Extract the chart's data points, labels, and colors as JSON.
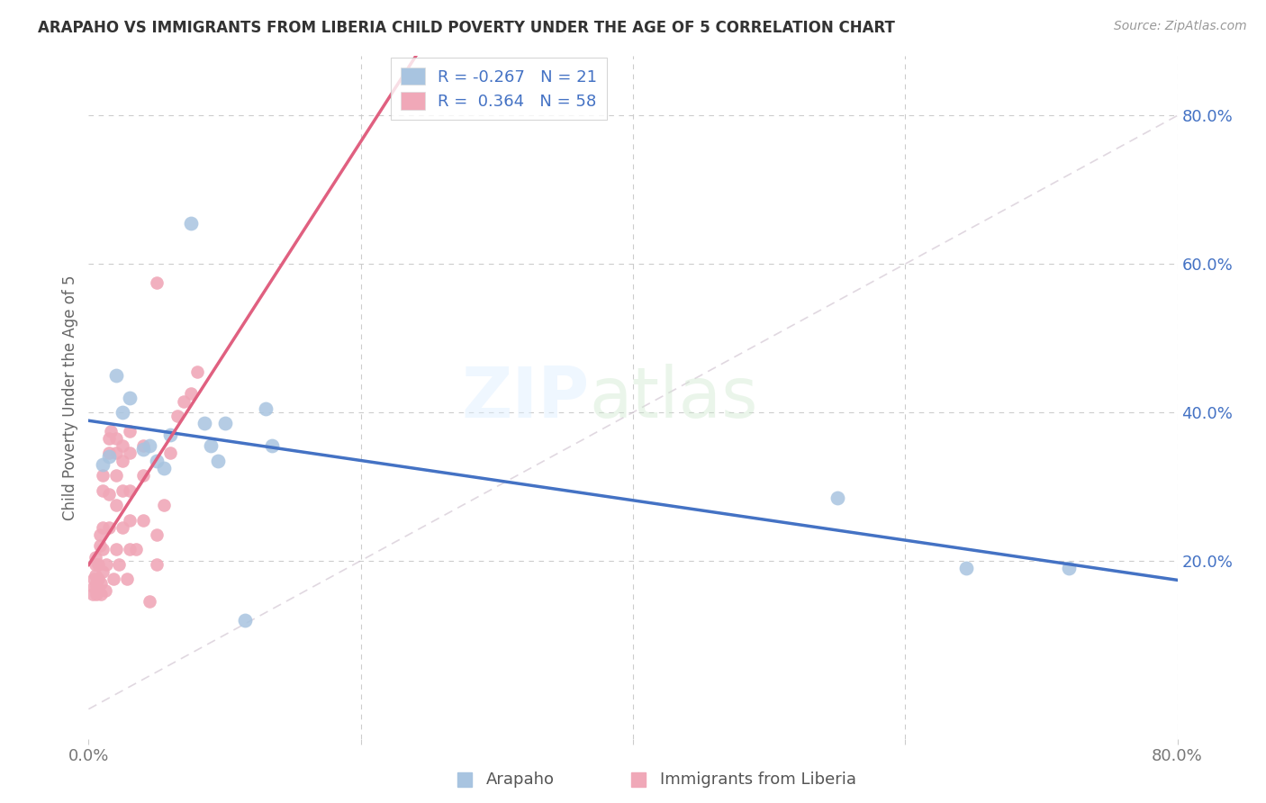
{
  "title": "ARAPAHO VS IMMIGRANTS FROM LIBERIA CHILD POVERTY UNDER THE AGE OF 5 CORRELATION CHART",
  "source": "Source: ZipAtlas.com",
  "ylabel": "Child Poverty Under the Age of 5",
  "xlim": [
    0.0,
    0.8
  ],
  "ylim": [
    -0.04,
    0.88
  ],
  "arapaho_color": "#a8c4e0",
  "liberia_color": "#f0a8b8",
  "arapaho_line_color": "#4472c4",
  "liberia_line_color": "#e06080",
  "legend_R_arapaho": "R = -0.267",
  "legend_N_arapaho": "N = 21",
  "legend_R_liberia": "R =  0.364",
  "legend_N_liberia": "N = 58",
  "arapaho_points": [
    [
      0.01,
      0.33
    ],
    [
      0.015,
      0.34
    ],
    [
      0.02,
      0.45
    ],
    [
      0.025,
      0.4
    ],
    [
      0.03,
      0.42
    ],
    [
      0.04,
      0.35
    ],
    [
      0.045,
      0.355
    ],
    [
      0.05,
      0.335
    ],
    [
      0.055,
      0.325
    ],
    [
      0.06,
      0.37
    ],
    [
      0.075,
      0.655
    ],
    [
      0.085,
      0.385
    ],
    [
      0.09,
      0.355
    ],
    [
      0.095,
      0.335
    ],
    [
      0.1,
      0.385
    ],
    [
      0.115,
      0.12
    ],
    [
      0.13,
      0.405
    ],
    [
      0.135,
      0.355
    ],
    [
      0.55,
      0.285
    ],
    [
      0.645,
      0.19
    ],
    [
      0.72,
      0.19
    ]
  ],
  "liberia_points": [
    [
      0.003,
      0.155
    ],
    [
      0.004,
      0.165
    ],
    [
      0.004,
      0.175
    ],
    [
      0.005,
      0.18
    ],
    [
      0.005,
      0.195
    ],
    [
      0.005,
      0.205
    ],
    [
      0.006,
      0.155
    ],
    [
      0.006,
      0.165
    ],
    [
      0.006,
      0.17
    ],
    [
      0.007,
      0.175
    ],
    [
      0.007,
      0.195
    ],
    [
      0.008,
      0.22
    ],
    [
      0.008,
      0.235
    ],
    [
      0.009,
      0.155
    ],
    [
      0.009,
      0.17
    ],
    [
      0.01,
      0.185
    ],
    [
      0.01,
      0.215
    ],
    [
      0.01,
      0.245
    ],
    [
      0.01,
      0.295
    ],
    [
      0.01,
      0.315
    ],
    [
      0.012,
      0.16
    ],
    [
      0.013,
      0.195
    ],
    [
      0.015,
      0.245
    ],
    [
      0.015,
      0.29
    ],
    [
      0.015,
      0.345
    ],
    [
      0.015,
      0.365
    ],
    [
      0.016,
      0.375
    ],
    [
      0.018,
      0.175
    ],
    [
      0.02,
      0.215
    ],
    [
      0.02,
      0.275
    ],
    [
      0.02,
      0.315
    ],
    [
      0.02,
      0.345
    ],
    [
      0.02,
      0.365
    ],
    [
      0.022,
      0.195
    ],
    [
      0.025,
      0.245
    ],
    [
      0.025,
      0.295
    ],
    [
      0.025,
      0.335
    ],
    [
      0.025,
      0.355
    ],
    [
      0.028,
      0.175
    ],
    [
      0.03,
      0.215
    ],
    [
      0.03,
      0.255
    ],
    [
      0.03,
      0.295
    ],
    [
      0.03,
      0.345
    ],
    [
      0.03,
      0.375
    ],
    [
      0.035,
      0.215
    ],
    [
      0.04,
      0.255
    ],
    [
      0.04,
      0.315
    ],
    [
      0.04,
      0.355
    ],
    [
      0.045,
      0.145
    ],
    [
      0.05,
      0.195
    ],
    [
      0.05,
      0.235
    ],
    [
      0.05,
      0.575
    ],
    [
      0.055,
      0.275
    ],
    [
      0.06,
      0.345
    ],
    [
      0.065,
      0.395
    ],
    [
      0.07,
      0.415
    ],
    [
      0.075,
      0.425
    ],
    [
      0.08,
      0.455
    ]
  ],
  "background_color": "#ffffff",
  "grid_color": "#cccccc",
  "grid_linestyle": "--"
}
